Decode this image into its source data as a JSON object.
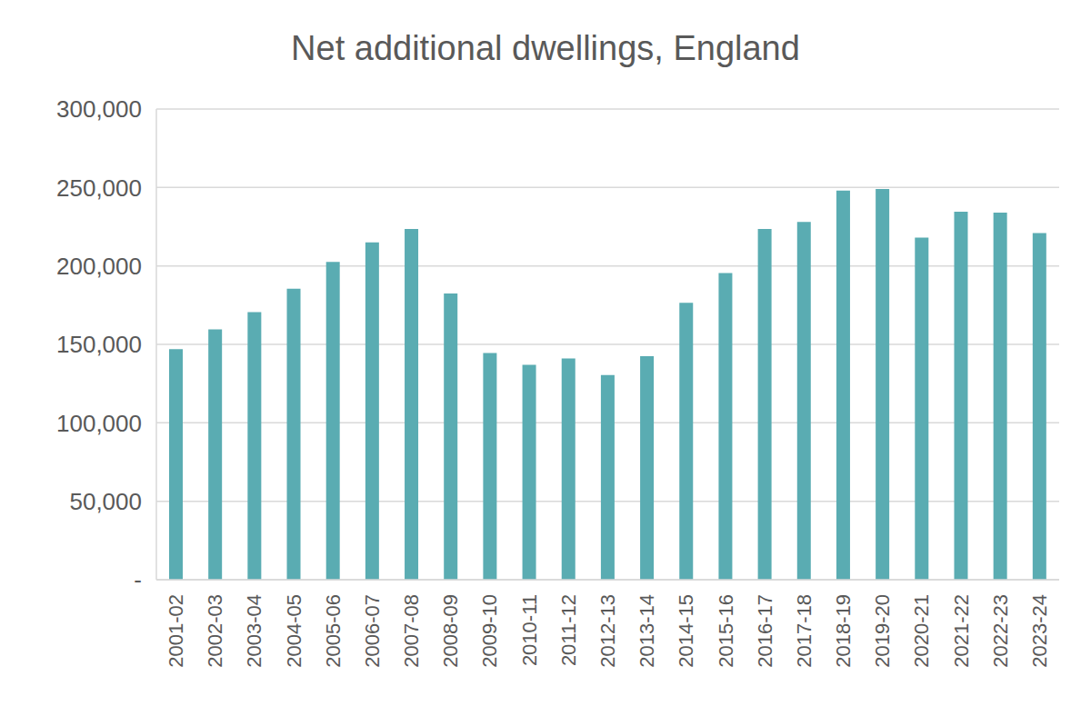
{
  "chart_data": {
    "type": "bar",
    "title": "Net additional dwellings, England",
    "categories": [
      "2001-02",
      "2002-03",
      "2003-04",
      "2004-05",
      "2005-06",
      "2006-07",
      "2007-08",
      "2008-09",
      "2009-10",
      "2010-11",
      "2011-12",
      "2012-13",
      "2013-14",
      "2014-15",
      "2015-16",
      "2016-17",
      "2017-18",
      "2018-19",
      "2019-20",
      "2020-21",
      "2021-22",
      "2022-23",
      "2023-24"
    ],
    "values": [
      147000,
      159500,
      170500,
      185500,
      202500,
      215000,
      223500,
      182500,
      144500,
      137000,
      141000,
      130500,
      142500,
      176500,
      195500,
      223500,
      228000,
      248000,
      249000,
      218000,
      234500,
      234000,
      221000
    ],
    "color": "#5aacb2",
    "ylim": [
      0,
      300000
    ],
    "yticks": [
      {
        "value": 0,
        "label": "-"
      },
      {
        "value": 50000,
        "label": "50,000"
      },
      {
        "value": 100000,
        "label": "100,000"
      },
      {
        "value": 150000,
        "label": "150,000"
      },
      {
        "value": 200000,
        "label": "200,000"
      },
      {
        "value": 250000,
        "label": "250,000"
      },
      {
        "value": 300000,
        "label": "300,000"
      }
    ],
    "grid": true
  }
}
